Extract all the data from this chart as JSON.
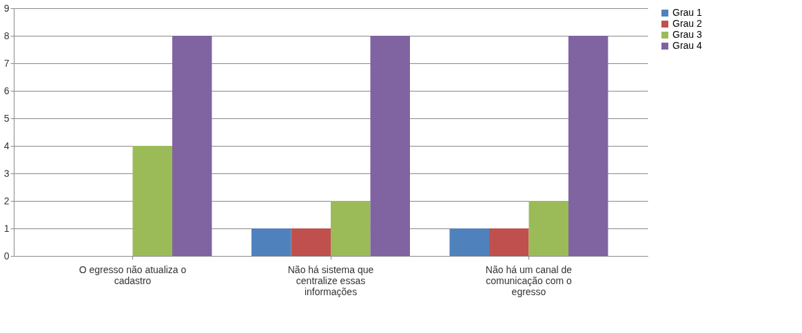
{
  "chart_data": {
    "type": "bar",
    "categories": [
      "O egresso não atualiza o cadastro",
      "Não há sistema que centralize essas informações",
      "Não há um canal de comunicação com o egresso"
    ],
    "series": [
      {
        "name": "Grau 1",
        "color": "#4f81bd",
        "values": [
          0,
          1,
          1
        ]
      },
      {
        "name": "Grau 2",
        "color": "#c0504d",
        "values": [
          0,
          1,
          1
        ]
      },
      {
        "name": "Grau 3",
        "color": "#9bbb59",
        "values": [
          4,
          2,
          2
        ]
      },
      {
        "name": "Grau 4",
        "color": "#8064a2",
        "values": [
          8,
          8,
          8
        ]
      }
    ],
    "ylim": [
      0,
      9
    ],
    "yticks": [
      0,
      1,
      2,
      3,
      4,
      5,
      6,
      7,
      8,
      9
    ],
    "grid": "y",
    "legend": "right"
  }
}
